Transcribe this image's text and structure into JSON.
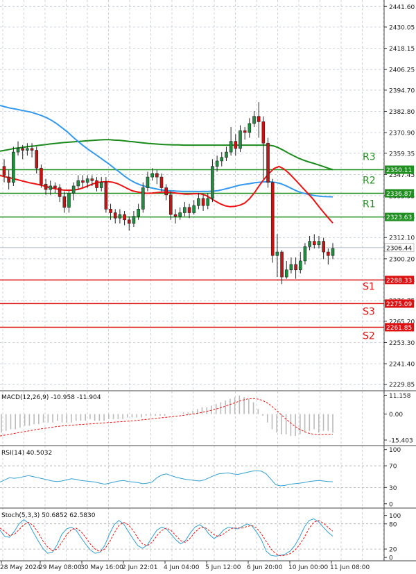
{
  "chart_data": {
    "type": "candlestick",
    "main": {
      "y_ticks": [
        "2441.60",
        "2430.05",
        "2418.15",
        "2406.25",
        "2394.70",
        "2382.80",
        "2370.90",
        "2359.35",
        "2347.45",
        "2335.55",
        "2323.63",
        "2312.10",
        "2300.20",
        "2288.33",
        "2276.75",
        "2265.20",
        "2253.30",
        "2241.40",
        "2229.85"
      ],
      "ylim": [
        2229.85,
        2441.6
      ],
      "current_price": "2306.44",
      "levels": [
        {
          "name": "R3",
          "value": 2350.11,
          "label": "2350.11",
          "color": "#1f8f1f"
        },
        {
          "name": "R2",
          "value": 2336.87,
          "label": "2336.87",
          "color": "#1f8f1f"
        },
        {
          "name": "R1",
          "value": 2323.63,
          "label": "2323.63",
          "color": "#1f8f1f"
        },
        {
          "name": "S1",
          "value": 2288.33,
          "label": "2288.33",
          "color": "#dd1111"
        },
        {
          "name": "S3",
          "value": 2275.09,
          "label": "2275.09",
          "color": "#dd1111"
        },
        {
          "name": "S2",
          "value": 2261.85,
          "label": "2261.85",
          "color": "#dd1111"
        }
      ],
      "candles": [
        [
          2352,
          2347,
          2356,
          2343
        ],
        [
          2346,
          2343,
          2350,
          2339
        ],
        [
          2343,
          2360,
          2363,
          2341
        ],
        [
          2360,
          2362,
          2366,
          2358
        ],
        [
          2362,
          2361,
          2364,
          2356
        ],
        [
          2361,
          2362,
          2365,
          2358
        ],
        [
          2362,
          2361,
          2365,
          2357
        ],
        [
          2361,
          2351,
          2363,
          2348
        ],
        [
          2351,
          2342,
          2353,
          2340
        ],
        [
          2342,
          2339,
          2345,
          2336
        ],
        [
          2339,
          2341,
          2344,
          2336
        ],
        [
          2341,
          2340,
          2343,
          2337
        ],
        [
          2340,
          2335,
          2342,
          2332
        ],
        [
          2335,
          2329,
          2338,
          2326
        ],
        [
          2329,
          2337,
          2339,
          2326
        ],
        [
          2337,
          2341,
          2343,
          2333
        ],
        [
          2341,
          2344,
          2347,
          2339
        ],
        [
          2344,
          2343,
          2347,
          2340
        ],
        [
          2343,
          2345,
          2347,
          2340
        ],
        [
          2345,
          2344,
          2347,
          2341
        ],
        [
          2344,
          2340,
          2346,
          2338
        ],
        [
          2340,
          2343,
          2346,
          2338
        ],
        [
          2343,
          2328,
          2346,
          2326
        ],
        [
          2328,
          2326,
          2331,
          2322
        ],
        [
          2326,
          2323,
          2328,
          2320
        ],
        [
          2323,
          2325,
          2328,
          2320
        ],
        [
          2325,
          2322,
          2327,
          2319
        ],
        [
          2322,
          2320,
          2324,
          2316
        ],
        [
          2320,
          2324,
          2327,
          2318
        ],
        [
          2324,
          2328,
          2331,
          2322
        ],
        [
          2328,
          2340,
          2343,
          2326
        ],
        [
          2340,
          2346,
          2349,
          2338
        ],
        [
          2346,
          2348,
          2351,
          2344
        ],
        [
          2348,
          2346,
          2350,
          2342
        ],
        [
          2346,
          2340,
          2348,
          2338
        ],
        [
          2340,
          2336,
          2342,
          2333
        ],
        [
          2336,
          2325,
          2338,
          2322
        ],
        [
          2325,
          2324,
          2328,
          2320
        ],
        [
          2324,
          2326,
          2329,
          2322
        ],
        [
          2326,
          2329,
          2332,
          2324
        ],
        [
          2329,
          2326,
          2331,
          2323
        ],
        [
          2326,
          2330,
          2333,
          2325
        ],
        [
          2330,
          2334,
          2337,
          2328
        ],
        [
          2334,
          2330,
          2336,
          2327
        ],
        [
          2330,
          2334,
          2337,
          2328
        ],
        [
          2334,
          2352,
          2356,
          2332
        ],
        [
          2352,
          2355,
          2358,
          2349
        ],
        [
          2355,
          2357,
          2360,
          2352
        ],
        [
          2357,
          2360,
          2363,
          2355
        ],
        [
          2360,
          2366,
          2374,
          2358
        ],
        [
          2366,
          2362,
          2370,
          2358
        ],
        [
          2362,
          2372,
          2375,
          2360
        ],
        [
          2372,
          2371,
          2374,
          2367
        ],
        [
          2371,
          2376,
          2379,
          2368
        ],
        [
          2376,
          2380,
          2383,
          2374
        ],
        [
          2380,
          2377,
          2388,
          2368
        ],
        [
          2377,
          2365,
          2380,
          2345
        ],
        [
          2365,
          2343,
          2368,
          2340
        ],
        [
          2343,
          2302,
          2345,
          2298
        ],
        [
          2302,
          2304,
          2314,
          2290
        ],
        [
          2304,
          2290,
          2305,
          2286
        ],
        [
          2290,
          2294,
          2299,
          2289
        ],
        [
          2294,
          2297,
          2301,
          2292
        ],
        [
          2297,
          2294,
          2301,
          2289
        ],
        [
          2294,
          2299,
          2304,
          2292
        ],
        [
          2299,
          2307,
          2309,
          2297
        ],
        [
          2307,
          2310,
          2313,
          2305
        ],
        [
          2310,
          2308,
          2314,
          2306
        ],
        [
          2308,
          2310,
          2313,
          2306
        ],
        [
          2310,
          2304,
          2312,
          2300
        ],
        [
          2304,
          2302,
          2306,
          2297
        ],
        [
          2302,
          2306,
          2309,
          2300
        ]
      ],
      "ma_slow": [
        2360.5,
        2361.0,
        2361.5,
        2362.1,
        2362.4,
        2362.8,
        2363.2,
        2363.4,
        2363.8,
        2364.1,
        2364.5,
        2364.8,
        2365.1,
        2365.4,
        2365.6,
        2365.8,
        2366.0,
        2366.2,
        2366.4,
        2366.6,
        2366.8,
        2366.9,
        2366.9,
        2366.7,
        2366.6,
        2366.3,
        2366.0,
        2365.7,
        2365.4,
        2365.1,
        2364.8,
        2364.6,
        2364.4,
        2364.2,
        2364.1,
        2364.0,
        2364.0,
        2363.9,
        2363.9,
        2363.9,
        2363.9,
        2363.9,
        2363.9,
        2363.9,
        2363.9,
        2363.9,
        2363.9,
        2363.9,
        2363.9,
        2363.9,
        2363.9,
        2363.9,
        2363.9,
        2363.9,
        2363.9,
        2363.5,
        2362.5,
        2361.1,
        2359.5,
        2358.1,
        2356.7,
        2355.6,
        2354.6,
        2353.8,
        2352.9,
        2352.0,
        2351.0,
        2350.1
      ],
      "ma_mid": [
        2386.1,
        2385.3,
        2384.6,
        2384.1,
        2383.5,
        2382.9,
        2382.3,
        2381.4,
        2380.4,
        2379.2,
        2377.6,
        2375.7,
        2373.5,
        2371.2,
        2368.5,
        2366.0,
        2363.6,
        2361.4,
        2359.4,
        2357.4,
        2355.3,
        2353.2,
        2350.9,
        2348.7,
        2346.4,
        2344.4,
        2342.8,
        2341.6,
        2340.7,
        2340.0,
        2339.4,
        2338.8,
        2338.4,
        2338.3,
        2338.1,
        2338.0,
        2338.0,
        2338.0,
        2337.9,
        2338.0,
        2338.0,
        2338.1,
        2338.4,
        2339.1,
        2339.8,
        2340.6,
        2341.4,
        2341.9,
        2342.3,
        2342.8,
        2343.1,
        2343.3,
        2343.3,
        2343.0,
        2342.3,
        2341.1,
        2339.7,
        2338.3,
        2337.2,
        2336.5,
        2335.9,
        2335.4,
        2335.1,
        2335.0,
        2334.9
      ],
      "ma_fast": [
        2346.9,
        2346.2,
        2345.6,
        2344.9,
        2344.2,
        2343.5,
        2342.8,
        2342.3,
        2341.7,
        2341.0,
        2340.2,
        2339.6,
        2339.1,
        2338.7,
        2338.6,
        2338.7,
        2339.1,
        2340.0,
        2341.1,
        2342.2,
        2343.0,
        2343.3,
        2343.4,
        2343.1,
        2342.3,
        2341.0,
        2339.6,
        2338.3,
        2337.7,
        2337.2,
        2336.9,
        2337.0,
        2337.3,
        2337.6,
        2337.6,
        2337.4,
        2337.0,
        2336.7,
        2336.4,
        2336.5,
        2336.7,
        2336.6,
        2335.8,
        2334.2,
        2332.5,
        2331.0,
        2329.9,
        2329.4,
        2329.6,
        2330.2,
        2331.4,
        2333.9,
        2337.3,
        2341.3,
        2345.0,
        2348.1,
        2350.8,
        2351.9,
        2350.6,
        2348.2,
        2345.4,
        2342.5,
        2339.5,
        2336.6,
        2333.5,
        2330.0,
        2326.6,
        2323.4,
        2320.2
      ]
    },
    "macd": {
      "label": "MACD(12,26,9) -10.958 -11.904",
      "y_ticks": [
        "11.158",
        "0.00",
        "-15.403"
      ],
      "ylim": [
        -18.7,
        13.4
      ],
      "histogram": [
        -11,
        -10,
        -9,
        -9,
        -8,
        -7,
        -7,
        -6,
        -6,
        -5,
        -5,
        -5,
        -4,
        -5,
        -5,
        -5,
        -4,
        -4,
        -4,
        -3,
        -4,
        -4,
        -4,
        -3,
        -3,
        -3,
        -3,
        -2,
        -2,
        -2,
        -2,
        -1,
        -1,
        -1,
        -1,
        -1,
        0,
        0,
        0,
        1,
        1,
        2,
        3,
        4,
        4,
        5,
        6,
        7,
        8,
        9,
        10,
        11,
        10,
        9,
        7,
        3,
        -1,
        -5,
        -9,
        -11,
        -12,
        -12,
        -13,
        -13,
        -12,
        -11,
        -10,
        -9,
        -11,
        -10,
        -10,
        -11
      ],
      "signal": [
        -13,
        -12.5,
        -12,
        -11.5,
        -11,
        -10.5,
        -10,
        -9.5,
        -9,
        -8.6,
        -8.2,
        -7.8,
        -7.4,
        -7.1,
        -6.8,
        -6.6,
        -6.4,
        -6.2,
        -6,
        -5.8,
        -5.6,
        -5.4,
        -5.2,
        -5,
        -4.8,
        -4.6,
        -4.4,
        -4.2,
        -4,
        -3.7,
        -3.4,
        -3.1,
        -2.8,
        -2.5,
        -2.2,
        -1.9,
        -1.6,
        -1.3,
        -1,
        -0.6,
        -0.2,
        0.2,
        0.7,
        1.3,
        1.9,
        2.6,
        3.4,
        4.3,
        5.3,
        6.3,
        7.3,
        8.2,
        8.9,
        9.2,
        9.0,
        8.3,
        7.0,
        5.0,
        2.6,
        0,
        -2.6,
        -5,
        -7.2,
        -9,
        -10.4,
        -11.4,
        -12,
        -12.3,
        -12.2,
        -12,
        -11.9
      ]
    },
    "rsi": {
      "label": "RSI(14) 40.5032",
      "y_ticks": [
        "100",
        "70",
        "30",
        "0"
      ],
      "ylim": [
        0,
        100
      ],
      "levels": [
        70,
        30
      ],
      "values": [
        40,
        44,
        48,
        47,
        48,
        50,
        52,
        50,
        48,
        46,
        44,
        42,
        41,
        42,
        44,
        46,
        45,
        43,
        42,
        41,
        40,
        38,
        36,
        38,
        40,
        42,
        43,
        41,
        40,
        39,
        37,
        38,
        40,
        48,
        53,
        55,
        52,
        49,
        47,
        45,
        44,
        43,
        42,
        44,
        48,
        52,
        55,
        56,
        57,
        55,
        54,
        56,
        58,
        60,
        61,
        60,
        55,
        45,
        35,
        33,
        34,
        36,
        37,
        38,
        39,
        41,
        42,
        43,
        42,
        41,
        40.5
      ]
    },
    "stoch": {
      "label": "Stoch(5,3,3) 50.6852 62.5830",
      "y_ticks": [
        "100",
        "80",
        "20",
        "0"
      ],
      "ylim": [
        0,
        100
      ],
      "levels": [
        80,
        20
      ],
      "k": [
        65,
        50,
        48,
        62,
        80,
        90,
        82,
        60,
        40,
        22,
        10,
        12,
        30,
        55,
        68,
        72,
        65,
        48,
        32,
        18,
        10,
        12,
        28,
        55,
        78,
        88,
        80,
        62,
        44,
        28,
        22,
        30,
        48,
        65,
        72,
        68,
        55,
        42,
        32,
        40,
        58,
        72,
        78,
        70,
        55,
        45,
        52,
        65,
        72,
        70,
        68,
        74,
        80,
        75,
        60,
        42,
        15,
        5,
        3,
        5,
        8,
        15,
        28,
        48,
        72,
        88,
        92,
        85,
        72,
        60,
        50.7
      ],
      "d": [
        70,
        62,
        52,
        55,
        66,
        78,
        84,
        76,
        60,
        40,
        25,
        16,
        20,
        36,
        54,
        66,
        70,
        62,
        48,
        32,
        20,
        14,
        20,
        36,
        58,
        76,
        84,
        78,
        64,
        46,
        32,
        28,
        36,
        52,
        64,
        70,
        64,
        52,
        40,
        36,
        46,
        60,
        70,
        72,
        64,
        54,
        50,
        56,
        64,
        70,
        70,
        70,
        74,
        76,
        70,
        56,
        38,
        20,
        9,
        4,
        5,
        9,
        17,
        30,
        48,
        69,
        84,
        88,
        82,
        72,
        62.6
      ]
    },
    "x_labels": [
      "28 May 2024",
      "29 May 08:00",
      "30 May 16:00",
      "2 Jun 22:01",
      "4 Jun 04:00",
      "5 Jun 12:00",
      "6 Jun 20:00",
      "10 Jun 00:00",
      "11 Jun 08:00"
    ],
    "colors": {
      "bull": "#1f8f3f",
      "bear": "#cc1111",
      "ma_slow": "#1a8a1a",
      "ma_mid": "#3399ee",
      "ma_fast": "#ee1111",
      "grid": "#b8c0cc",
      "macd_hist": "#bbbbbb",
      "macd_signal": "#ee1111",
      "osc_line": "#33a0d0",
      "osc_signal": "#ee1111"
    }
  }
}
